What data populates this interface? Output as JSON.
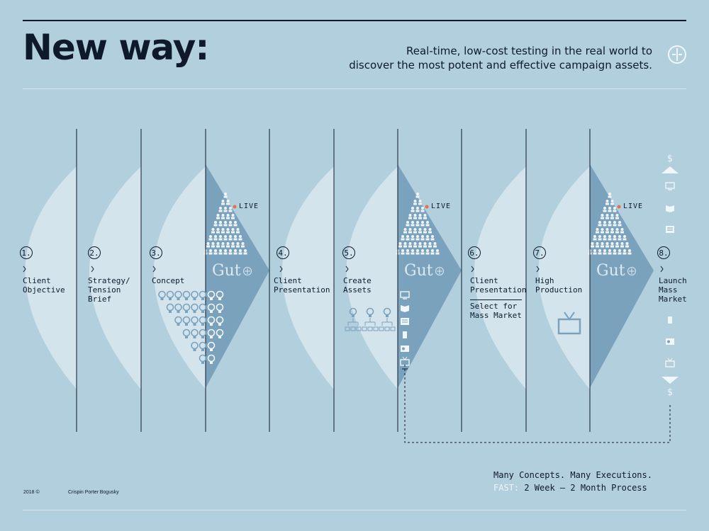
{
  "header": {
    "title": "New way:",
    "subtitle_line1": "Real-time, low-cost testing in the real world to",
    "subtitle_line2": "discover the most potent and effective campaign assets."
  },
  "steps": [
    {
      "number": "1.",
      "label": "Client\nObjective"
    },
    {
      "number": "2.",
      "label": "Strategy/\nTension\nBrief"
    },
    {
      "number": "3.",
      "label": "Concept"
    },
    {
      "number": "4.",
      "label": "Client\nPresentation"
    },
    {
      "number": "5.",
      "label": "Create\nAssets"
    },
    {
      "number": "6.",
      "label": "Client\nPresentation"
    },
    {
      "number": "7.",
      "label": "High\nProduction"
    },
    {
      "number": "8.",
      "label": "Launch\nMass\nMarket"
    }
  ],
  "step6_note": "Select for\nMass Market",
  "test": {
    "live_label": "LIVE",
    "brand": "Gut"
  },
  "symbols": {
    "dollar": "$"
  },
  "footer": {
    "tagline": "Many Concepts. Many Executions.",
    "fast_label": "FAST:",
    "process": "2 Week – 2 Month Process",
    "year": "2018 ©",
    "agency": "Crispin Porter Bogusky"
  },
  "colors": {
    "background": "#b1cfdc",
    "lens": "#d4e4ec",
    "triangle": "#7ba2bd",
    "ink": "#0e1a2b",
    "live_dot": "#e0714e"
  }
}
